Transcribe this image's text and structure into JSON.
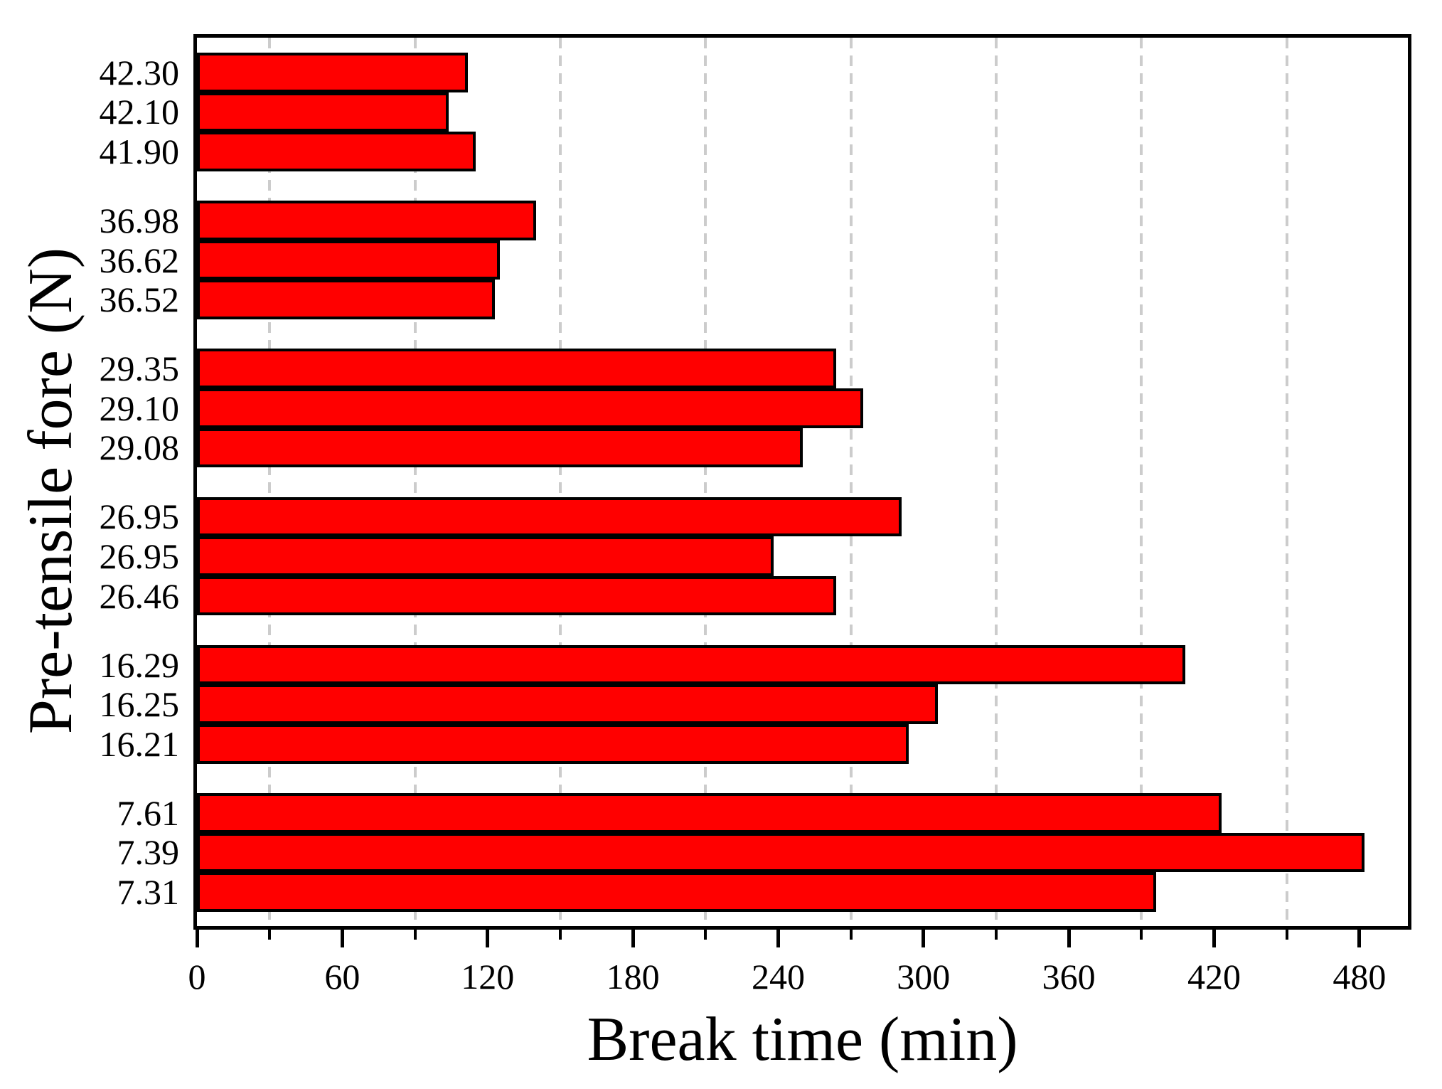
{
  "chart_data": {
    "type": "bar",
    "orientation": "horizontal",
    "title": "",
    "xlabel": "Break time (min)",
    "ylabel": "Pre-tensile fore (N)",
    "xlim": [
      0,
      500
    ],
    "x_major_ticks": [
      0,
      60,
      120,
      180,
      240,
      300,
      360,
      420,
      480
    ],
    "x_minor_ticks": [
      30,
      90,
      150,
      210,
      270,
      330,
      390,
      450
    ],
    "gridlines_at_minor_ticks": [
      30,
      90,
      150,
      210,
      270,
      330,
      390,
      450
    ],
    "grid_style": "dashed",
    "legend": "none",
    "colors": {
      "bar_fill": "#FF0000",
      "bar_border": "#000000",
      "grid": "#CCCCCC",
      "axis": "#000000",
      "background": "#FFFFFF"
    },
    "groups": [
      {
        "labels": [
          "42.30",
          "42.10",
          "41.90"
        ],
        "values": [
          112,
          104,
          115
        ]
      },
      {
        "labels": [
          "36.98",
          "36.62",
          "36.52"
        ],
        "values": [
          140,
          125,
          123
        ]
      },
      {
        "labels": [
          "29.35",
          "29.10",
          "29.08"
        ],
        "values": [
          264,
          275,
          250
        ]
      },
      {
        "labels": [
          "26.95",
          "26.95",
          "26.46"
        ],
        "values": [
          291,
          238,
          264
        ]
      },
      {
        "labels": [
          "16.29",
          "16.25",
          "16.21"
        ],
        "values": [
          408,
          306,
          294
        ]
      },
      {
        "labels": [
          "7.61",
          "7.39",
          "7.31"
        ],
        "values": [
          423,
          482,
          396
        ]
      }
    ]
  }
}
